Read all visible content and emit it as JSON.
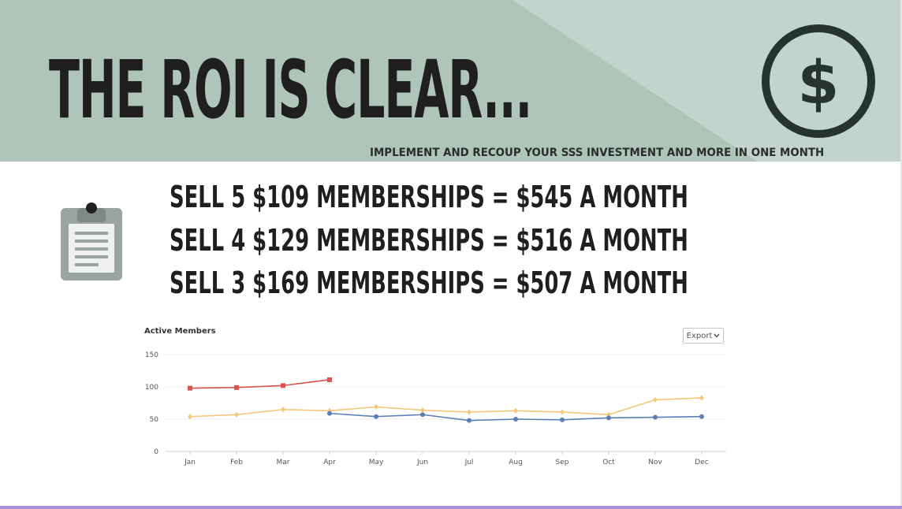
{
  "header": {
    "title": "THE ROI IS CLEAR...",
    "subtitle": "IMPLEMENT AND RECOUP YOUR SSS INVESTMENT AND MORE IN ONE MONTH",
    "badge_symbol": "$",
    "icon": "dollar-circle-icon"
  },
  "offers": {
    "icon": "clipboard-icon",
    "lines": [
      "SELL 5 $109 MEMBERSHIPS = $545 A MONTH",
      "SELL 4 $129 MEMBERSHIPS = $516 A MONTH",
      "SELL 3 $169 MEMBERSHIPS = $507 A MONTH"
    ]
  },
  "chart_panel": {
    "title": "Active Members",
    "export_label": "Export"
  },
  "colors": {
    "header_bg": "#afc5ba",
    "header_diag": "#c2d4cb",
    "text_dark": "#1f1f1f",
    "icon_gray": "#9aa5a1",
    "series_red": "#d9534f",
    "series_orange": "#f5c77a",
    "series_blue": "#5b7fb5"
  },
  "chart_data": {
    "type": "line",
    "title": "Active Members",
    "xlabel": "",
    "ylabel": "",
    "ylim": [
      0,
      150
    ],
    "yticks": [
      0,
      50,
      100,
      150
    ],
    "grid": true,
    "legend": "none",
    "categories": [
      "Jan",
      "Feb",
      "Mar",
      "Apr",
      "May",
      "Jun",
      "Jul",
      "Aug",
      "Sep",
      "Oct",
      "Nov",
      "Dec"
    ],
    "series": [
      {
        "color": "#d9534f",
        "marker": "square",
        "values": [
          98,
          99,
          102,
          111,
          null,
          null,
          null,
          null,
          null,
          null,
          null,
          null
        ]
      },
      {
        "color": "#f5c77a",
        "marker": "diamond",
        "values": [
          54,
          57,
          65,
          63,
          69,
          64,
          61,
          63,
          61,
          57,
          80,
          83
        ]
      },
      {
        "color": "#5b7fb5",
        "marker": "circle",
        "values": [
          null,
          null,
          null,
          59,
          54,
          57,
          48,
          50,
          49,
          52,
          53,
          54
        ]
      }
    ]
  }
}
